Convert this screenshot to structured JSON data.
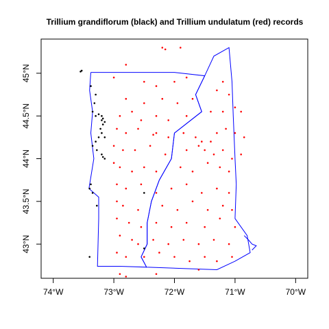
{
  "chart_data": {
    "type": "scatter",
    "title": "Trillium grandiflorum (black) and Trillium undulatum (red) records",
    "xlim": [
      -74.2,
      -69.8
    ],
    "ylim": [
      42.6,
      45.4
    ],
    "x_ticks": [
      {
        "value": -74,
        "label": "74°W"
      },
      {
        "value": -73,
        "label": "73°W"
      },
      {
        "value": -72,
        "label": "72°W"
      },
      {
        "value": -71,
        "label": "71°W"
      },
      {
        "value": -70,
        "label": "70°W"
      }
    ],
    "y_ticks": [
      {
        "value": 43,
        "label": "43°N"
      },
      {
        "value": 43.5,
        "label": "43.5°N"
      },
      {
        "value": 44,
        "label": "44°N"
      },
      {
        "value": 44.5,
        "label": "44.5°N"
      },
      {
        "value": 45,
        "label": "45°N"
      }
    ],
    "boundary_color": "#0000ff",
    "boundaries": [
      {
        "name": "vermont-outline",
        "points": [
          [
            -73.38,
            45.01
          ],
          [
            -73.4,
            44.8
          ],
          [
            -73.35,
            44.55
          ],
          [
            -73.38,
            44.3
          ],
          [
            -73.33,
            44.0
          ],
          [
            -73.41,
            43.65
          ],
          [
            -73.25,
            43.55
          ],
          [
            -73.25,
            43.3
          ],
          [
            -73.27,
            42.74
          ],
          [
            -72.9,
            42.74
          ],
          [
            -72.46,
            42.73
          ],
          [
            -72.55,
            42.85
          ],
          [
            -72.45,
            43.0
          ],
          [
            -72.45,
            43.25
          ],
          [
            -72.38,
            43.5
          ],
          [
            -72.25,
            43.75
          ],
          [
            -72.05,
            44.0
          ],
          [
            -72.0,
            44.3
          ],
          [
            -71.55,
            44.55
          ],
          [
            -71.65,
            44.75
          ],
          [
            -71.5,
            44.97
          ],
          [
            -72.0,
            45.01
          ],
          [
            -73.38,
            45.01
          ]
        ]
      },
      {
        "name": "new-hampshire-outline",
        "points": [
          [
            -71.5,
            44.97
          ],
          [
            -71.35,
            45.2
          ],
          [
            -71.1,
            45.3
          ],
          [
            -71.05,
            44.9
          ],
          [
            -71.03,
            44.5
          ],
          [
            -71.0,
            44.0
          ],
          [
            -70.98,
            43.7
          ],
          [
            -71.0,
            43.3
          ],
          [
            -70.8,
            43.1
          ],
          [
            -70.75,
            42.9
          ],
          [
            -71.0,
            42.8
          ],
          [
            -71.3,
            42.7
          ],
          [
            -72.46,
            42.73
          ],
          [
            -72.55,
            42.85
          ],
          [
            -72.45,
            43.0
          ],
          [
            -72.45,
            43.25
          ],
          [
            -72.38,
            43.5
          ],
          [
            -72.25,
            43.75
          ],
          [
            -72.05,
            44.0
          ],
          [
            -72.0,
            44.3
          ],
          [
            -71.55,
            44.55
          ],
          [
            -71.65,
            44.75
          ],
          [
            -71.5,
            44.97
          ]
        ]
      },
      {
        "name": "nh-seacoast-bay",
        "points": [
          [
            -70.85,
            43.1
          ],
          [
            -70.78,
            43.05
          ],
          [
            -70.72,
            43.0
          ],
          [
            -70.65,
            42.98
          ],
          [
            -70.72,
            42.93
          ]
        ]
      }
    ],
    "series": [
      {
        "name": "Trillium grandiflorum",
        "color": "#000000",
        "points": [
          [
            -73.55,
            45.02
          ],
          [
            -73.53,
            45.03
          ],
          [
            -73.38,
            44.85
          ],
          [
            -73.3,
            44.75
          ],
          [
            -73.32,
            44.65
          ],
          [
            -73.35,
            44.55
          ],
          [
            -73.3,
            44.5
          ],
          [
            -73.25,
            44.52
          ],
          [
            -73.2,
            44.5
          ],
          [
            -73.18,
            44.47
          ],
          [
            -73.2,
            44.45
          ],
          [
            -73.15,
            44.43
          ],
          [
            -73.18,
            44.4
          ],
          [
            -73.22,
            44.35
          ],
          [
            -73.2,
            44.3
          ],
          [
            -73.15,
            44.25
          ],
          [
            -73.25,
            44.25
          ],
          [
            -73.3,
            44.2
          ],
          [
            -73.35,
            44.15
          ],
          [
            -73.28,
            44.1
          ],
          [
            -73.2,
            44.05
          ],
          [
            -73.18,
            44.02
          ],
          [
            -73.15,
            44.0
          ],
          [
            -73.38,
            43.7
          ],
          [
            -73.4,
            43.65
          ],
          [
            -73.35,
            43.6
          ],
          [
            -73.28,
            43.45
          ],
          [
            -72.5,
            43.6
          ],
          [
            -72.5,
            42.95
          ],
          [
            -73.4,
            42.85
          ]
        ]
      },
      {
        "name": "Trillium undulatum",
        "color": "#ff0000",
        "points": [
          [
            -72.2,
            45.3
          ],
          [
            -72.15,
            45.28
          ],
          [
            -71.9,
            45.3
          ],
          [
            -72.8,
            45.1
          ],
          [
            -73.0,
            44.95
          ],
          [
            -72.5,
            44.9
          ],
          [
            -72.3,
            44.85
          ],
          [
            -72.0,
            44.9
          ],
          [
            -71.8,
            44.95
          ],
          [
            -71.2,
            44.9
          ],
          [
            -71.3,
            44.8
          ],
          [
            -71.1,
            44.75
          ],
          [
            -72.8,
            44.7
          ],
          [
            -72.5,
            44.65
          ],
          [
            -72.2,
            44.7
          ],
          [
            -71.95,
            44.65
          ],
          [
            -71.7,
            44.7
          ],
          [
            -72.7,
            44.55
          ],
          [
            -72.9,
            44.5
          ],
          [
            -72.55,
            44.45
          ],
          [
            -72.3,
            44.5
          ],
          [
            -72.1,
            44.45
          ],
          [
            -71.8,
            44.5
          ],
          [
            -71.4,
            44.55
          ],
          [
            -71.2,
            44.55
          ],
          [
            -71.0,
            44.6
          ],
          [
            -70.9,
            44.55
          ],
          [
            -72.95,
            44.35
          ],
          [
            -72.8,
            44.3
          ],
          [
            -72.6,
            44.35
          ],
          [
            -72.3,
            44.3
          ],
          [
            -72.35,
            44.28
          ],
          [
            -72.1,
            44.25
          ],
          [
            -71.85,
            44.3
          ],
          [
            -71.65,
            44.25
          ],
          [
            -71.55,
            44.2
          ],
          [
            -71.4,
            44.2
          ],
          [
            -71.3,
            44.3
          ],
          [
            -71.15,
            44.35
          ],
          [
            -71.0,
            44.3
          ],
          [
            -70.85,
            44.25
          ],
          [
            -73.0,
            44.15
          ],
          [
            -72.85,
            44.1
          ],
          [
            -72.65,
            44.1
          ],
          [
            -72.4,
            44.15
          ],
          [
            -72.15,
            44.05
          ],
          [
            -71.8,
            44.1
          ],
          [
            -71.6,
            44.15
          ],
          [
            -71.5,
            44.1
          ],
          [
            -71.35,
            44.05
          ],
          [
            -71.2,
            44.1
          ],
          [
            -71.05,
            44.0
          ],
          [
            -70.9,
            44.05
          ],
          [
            -73.0,
            43.95
          ],
          [
            -72.9,
            43.9
          ],
          [
            -72.7,
            43.85
          ],
          [
            -72.5,
            43.9
          ],
          [
            -72.3,
            43.85
          ],
          [
            -71.9,
            43.9
          ],
          [
            -71.7,
            43.85
          ],
          [
            -71.45,
            43.95
          ],
          [
            -71.25,
            43.9
          ],
          [
            -71.1,
            43.85
          ],
          [
            -72.95,
            43.7
          ],
          [
            -72.8,
            43.65
          ],
          [
            -72.55,
            43.7
          ],
          [
            -72.3,
            43.6
          ],
          [
            -72.05,
            43.65
          ],
          [
            -71.8,
            43.7
          ],
          [
            -71.55,
            43.6
          ],
          [
            -71.3,
            43.65
          ],
          [
            -71.1,
            43.6
          ],
          [
            -72.95,
            43.5
          ],
          [
            -72.85,
            43.45
          ],
          [
            -72.6,
            43.4
          ],
          [
            -72.2,
            43.45
          ],
          [
            -71.95,
            43.4
          ],
          [
            -71.7,
            43.5
          ],
          [
            -71.45,
            43.4
          ],
          [
            -71.2,
            43.45
          ],
          [
            -71.05,
            43.4
          ],
          [
            -72.95,
            43.3
          ],
          [
            -72.75,
            43.25
          ],
          [
            -72.55,
            43.2
          ],
          [
            -72.3,
            43.25
          ],
          [
            -72.05,
            43.2
          ],
          [
            -71.8,
            43.25
          ],
          [
            -71.5,
            43.2
          ],
          [
            -71.25,
            43.3
          ],
          [
            -71.0,
            43.2
          ],
          [
            -72.9,
            43.1
          ],
          [
            -72.7,
            43.05
          ],
          [
            -72.6,
            43.0
          ],
          [
            -72.35,
            43.05
          ],
          [
            -72.1,
            43.0
          ],
          [
            -71.85,
            43.05
          ],
          [
            -71.6,
            43.0
          ],
          [
            -71.35,
            43.05
          ],
          [
            -71.1,
            43.0
          ],
          [
            -72.95,
            42.9
          ],
          [
            -72.8,
            42.85
          ],
          [
            -72.5,
            42.85
          ],
          [
            -72.25,
            42.9
          ],
          [
            -72.0,
            42.85
          ],
          [
            -71.75,
            42.8
          ],
          [
            -71.5,
            42.85
          ],
          [
            -71.3,
            42.8
          ],
          [
            -71.05,
            42.85
          ],
          [
            -72.9,
            42.65
          ],
          [
            -72.8,
            42.62
          ],
          [
            -72.3,
            42.65
          ],
          [
            -71.6,
            42.7
          ]
        ]
      }
    ]
  }
}
